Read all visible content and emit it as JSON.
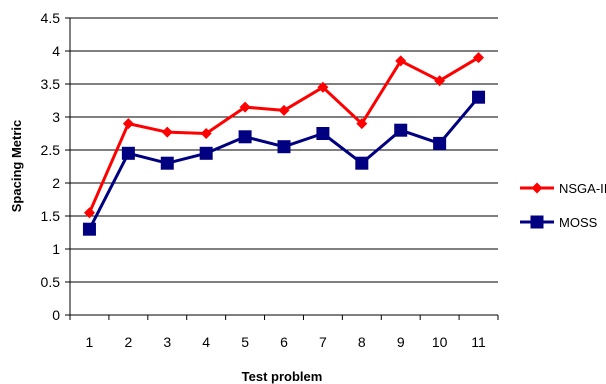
{
  "chart_data": {
    "type": "line",
    "title": "",
    "xlabel": "Test problem",
    "ylabel": "Spacing Metric",
    "categories": [
      "1",
      "2",
      "3",
      "4",
      "5",
      "6",
      "7",
      "8",
      "9",
      "10",
      "11"
    ],
    "ylim": [
      0,
      4.5
    ],
    "yticks": [
      "0",
      "0.5",
      "1",
      "1.5",
      "2",
      "2.5",
      "3",
      "3.5",
      "4",
      "4.5"
    ],
    "grid": "horizontal",
    "legend_position": "right",
    "series": [
      {
        "name": "NSGA-II",
        "color": "#ff0000",
        "marker": "diamond",
        "values": [
          1.55,
          2.9,
          2.77,
          2.75,
          3.15,
          3.1,
          3.45,
          2.9,
          3.85,
          3.55,
          3.9
        ]
      },
      {
        "name": "MOSS",
        "color": "#000080",
        "marker": "square",
        "values": [
          1.3,
          2.45,
          2.3,
          2.45,
          2.7,
          2.55,
          2.75,
          2.3,
          2.8,
          2.6,
          3.3
        ]
      }
    ]
  }
}
